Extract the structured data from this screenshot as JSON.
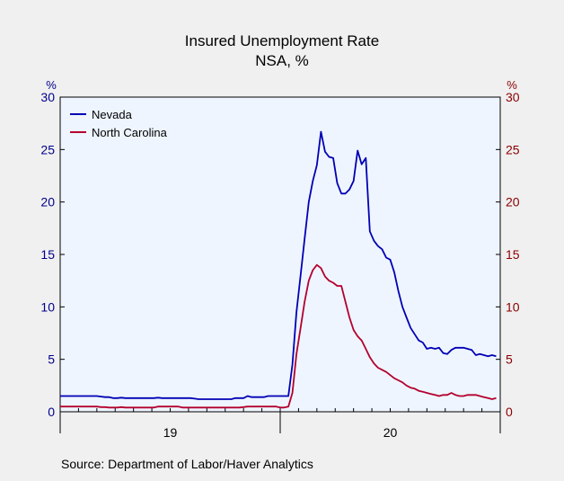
{
  "chart_data": {
    "type": "line",
    "title": "Insured Unemployment Rate",
    "subtitle": "NSA, %",
    "left_axis": {
      "unit": "%",
      "ticks": [
        "0",
        "5",
        "10",
        "15",
        "20",
        "25",
        "30"
      ],
      "ylim": [
        0,
        30
      ]
    },
    "right_axis": {
      "unit": "%",
      "ticks": [
        "0",
        "5",
        "10",
        "15",
        "20",
        "25",
        "30"
      ],
      "ylim": [
        0,
        30
      ]
    },
    "x_axis": {
      "tick_labels": [
        "19",
        "20"
      ]
    },
    "grid": false,
    "legend_position": "top-left",
    "source": "Source:  Department of Labor/Haver Analytics",
    "series": [
      {
        "name": "Nevada",
        "color": "#0000b4",
        "points": [
          [
            0,
            1.5
          ],
          [
            1,
            1.5
          ],
          [
            2,
            1.5
          ],
          [
            3,
            1.5
          ],
          [
            4,
            1.5
          ],
          [
            5,
            1.5
          ],
          [
            6,
            1.5
          ],
          [
            7,
            1.5
          ],
          [
            8,
            1.5
          ],
          [
            9,
            1.5
          ],
          [
            10,
            1.45
          ],
          [
            11,
            1.4
          ],
          [
            12,
            1.4
          ],
          [
            13,
            1.3
          ],
          [
            14,
            1.3
          ],
          [
            15,
            1.35
          ],
          [
            16,
            1.3
          ],
          [
            17,
            1.3
          ],
          [
            18,
            1.3
          ],
          [
            19,
            1.3
          ],
          [
            20,
            1.3
          ],
          [
            21,
            1.3
          ],
          [
            22,
            1.3
          ],
          [
            23,
            1.3
          ],
          [
            24,
            1.35
          ],
          [
            25,
            1.3
          ],
          [
            26,
            1.3
          ],
          [
            27,
            1.3
          ],
          [
            28,
            1.3
          ],
          [
            29,
            1.3
          ],
          [
            30,
            1.3
          ],
          [
            31,
            1.3
          ],
          [
            32,
            1.3
          ],
          [
            33,
            1.25
          ],
          [
            34,
            1.2
          ],
          [
            35,
            1.2
          ],
          [
            36,
            1.2
          ],
          [
            37,
            1.2
          ],
          [
            38,
            1.2
          ],
          [
            39,
            1.2
          ],
          [
            40,
            1.2
          ],
          [
            41,
            1.2
          ],
          [
            42,
            1.2
          ],
          [
            43,
            1.3
          ],
          [
            44,
            1.3
          ],
          [
            45,
            1.3
          ],
          [
            46,
            1.5
          ],
          [
            47,
            1.4
          ],
          [
            48,
            1.4
          ],
          [
            49,
            1.4
          ],
          [
            50,
            1.4
          ],
          [
            51,
            1.5
          ],
          [
            52,
            1.5
          ],
          [
            53,
            1.5
          ],
          [
            54,
            1.5
          ],
          [
            55,
            1.5
          ],
          [
            56,
            1.5
          ],
          [
            57,
            4.5
          ],
          [
            58,
            9.5
          ],
          [
            59,
            13.0
          ],
          [
            60,
            16.5
          ],
          [
            61,
            20.0
          ],
          [
            62,
            22.0
          ],
          [
            63,
            23.5
          ],
          [
            64,
            26.7
          ],
          [
            65,
            24.8
          ],
          [
            66,
            24.3
          ],
          [
            67,
            24.2
          ],
          [
            68,
            21.8
          ],
          [
            69,
            20.8
          ],
          [
            70,
            20.8
          ],
          [
            71,
            21.2
          ],
          [
            72,
            22.0
          ],
          [
            73,
            24.9
          ],
          [
            74,
            23.6
          ],
          [
            75,
            24.2
          ],
          [
            76,
            17.2
          ],
          [
            77,
            16.3
          ],
          [
            78,
            15.8
          ],
          [
            79,
            15.5
          ],
          [
            80,
            14.7
          ],
          [
            81,
            14.5
          ],
          [
            82,
            13.3
          ],
          [
            83,
            11.5
          ],
          [
            84,
            10.0
          ],
          [
            85,
            9.0
          ],
          [
            86,
            8.0
          ],
          [
            87,
            7.4
          ],
          [
            88,
            6.8
          ],
          [
            89,
            6.6
          ],
          [
            90,
            6.0
          ],
          [
            91,
            6.1
          ],
          [
            92,
            6.0
          ],
          [
            93,
            6.1
          ],
          [
            94,
            5.6
          ],
          [
            95,
            5.5
          ],
          [
            96,
            5.9
          ],
          [
            97,
            6.1
          ],
          [
            98,
            6.1
          ],
          [
            99,
            6.1
          ],
          [
            100,
            6.0
          ],
          [
            101,
            5.9
          ],
          [
            102,
            5.4
          ],
          [
            103,
            5.5
          ],
          [
            104,
            5.4
          ],
          [
            105,
            5.3
          ],
          [
            106,
            5.4
          ],
          [
            107,
            5.3
          ]
        ]
      },
      {
        "name": "North Carolina",
        "color": "#b4002d",
        "points": [
          [
            0,
            0.5
          ],
          [
            1,
            0.5
          ],
          [
            2,
            0.5
          ],
          [
            3,
            0.5
          ],
          [
            4,
            0.5
          ],
          [
            5,
            0.5
          ],
          [
            6,
            0.5
          ],
          [
            7,
            0.5
          ],
          [
            8,
            0.5
          ],
          [
            9,
            0.5
          ],
          [
            10,
            0.45
          ],
          [
            11,
            0.45
          ],
          [
            12,
            0.4
          ],
          [
            13,
            0.4
          ],
          [
            14,
            0.4
          ],
          [
            15,
            0.45
          ],
          [
            16,
            0.4
          ],
          [
            17,
            0.4
          ],
          [
            18,
            0.4
          ],
          [
            19,
            0.4
          ],
          [
            20,
            0.4
          ],
          [
            21,
            0.4
          ],
          [
            22,
            0.4
          ],
          [
            23,
            0.4
          ],
          [
            24,
            0.5
          ],
          [
            25,
            0.5
          ],
          [
            26,
            0.5
          ],
          [
            27,
            0.5
          ],
          [
            28,
            0.5
          ],
          [
            29,
            0.5
          ],
          [
            30,
            0.4
          ],
          [
            31,
            0.4
          ],
          [
            32,
            0.4
          ],
          [
            33,
            0.4
          ],
          [
            34,
            0.4
          ],
          [
            35,
            0.4
          ],
          [
            36,
            0.4
          ],
          [
            37,
            0.4
          ],
          [
            38,
            0.4
          ],
          [
            39,
            0.4
          ],
          [
            40,
            0.4
          ],
          [
            41,
            0.4
          ],
          [
            42,
            0.4
          ],
          [
            43,
            0.4
          ],
          [
            44,
            0.4
          ],
          [
            45,
            0.45
          ],
          [
            46,
            0.5
          ],
          [
            47,
            0.5
          ],
          [
            48,
            0.5
          ],
          [
            49,
            0.5
          ],
          [
            50,
            0.5
          ],
          [
            51,
            0.5
          ],
          [
            52,
            0.5
          ],
          [
            53,
            0.5
          ],
          [
            54,
            0.4
          ],
          [
            55,
            0.4
          ],
          [
            56,
            0.5
          ],
          [
            57,
            1.8
          ],
          [
            58,
            5.5
          ],
          [
            59,
            8.0
          ],
          [
            60,
            10.5
          ],
          [
            61,
            12.5
          ],
          [
            62,
            13.5
          ],
          [
            63,
            14.0
          ],
          [
            64,
            13.7
          ],
          [
            65,
            12.9
          ],
          [
            66,
            12.5
          ],
          [
            67,
            12.3
          ],
          [
            68,
            12.0
          ],
          [
            69,
            12.0
          ],
          [
            70,
            10.5
          ],
          [
            71,
            9.0
          ],
          [
            72,
            7.8
          ],
          [
            73,
            7.2
          ],
          [
            74,
            6.8
          ],
          [
            75,
            6.0
          ],
          [
            76,
            5.2
          ],
          [
            77,
            4.6
          ],
          [
            78,
            4.2
          ],
          [
            79,
            4.0
          ],
          [
            80,
            3.8
          ],
          [
            81,
            3.5
          ],
          [
            82,
            3.2
          ],
          [
            83,
            3.0
          ],
          [
            84,
            2.8
          ],
          [
            85,
            2.5
          ],
          [
            86,
            2.3
          ],
          [
            87,
            2.2
          ],
          [
            88,
            2.0
          ],
          [
            89,
            1.9
          ],
          [
            90,
            1.8
          ],
          [
            91,
            1.7
          ],
          [
            92,
            1.6
          ],
          [
            93,
            1.5
          ],
          [
            94,
            1.6
          ],
          [
            95,
            1.6
          ],
          [
            96,
            1.8
          ],
          [
            97,
            1.6
          ],
          [
            98,
            1.5
          ],
          [
            99,
            1.5
          ],
          [
            100,
            1.6
          ],
          [
            101,
            1.6
          ],
          [
            102,
            1.6
          ],
          [
            103,
            1.5
          ],
          [
            104,
            1.4
          ],
          [
            105,
            1.3
          ],
          [
            106,
            1.2
          ],
          [
            107,
            1.3
          ]
        ]
      }
    ]
  }
}
